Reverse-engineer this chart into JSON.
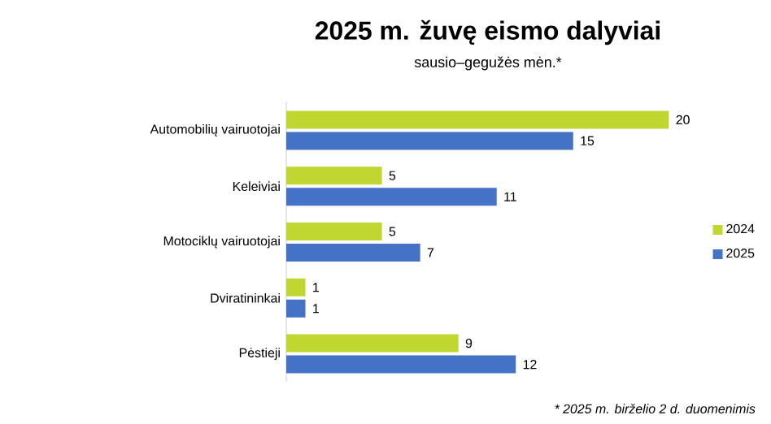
{
  "chart_data": {
    "type": "bar",
    "orientation": "horizontal",
    "title": "2025 m. žuvę eismo dalyviai",
    "subtitle": "sausio–gegužės mėn.*",
    "categories": [
      "Automobilių vairuotojai",
      "Keleiviai",
      "Motociklų vairuotojai",
      "Dviratininkai",
      "Pėstieji"
    ],
    "series": [
      {
        "name": "2024",
        "color": "#bfd730",
        "values": [
          20,
          5,
          5,
          1,
          9
        ]
      },
      {
        "name": "2025",
        "color": "#4472c4",
        "values": [
          15,
          11,
          7,
          1,
          12
        ]
      }
    ],
    "data_labels": true,
    "legend": "right",
    "annotations": [
      "* 2025 m. birželio 2 d. duomenimis"
    ]
  }
}
